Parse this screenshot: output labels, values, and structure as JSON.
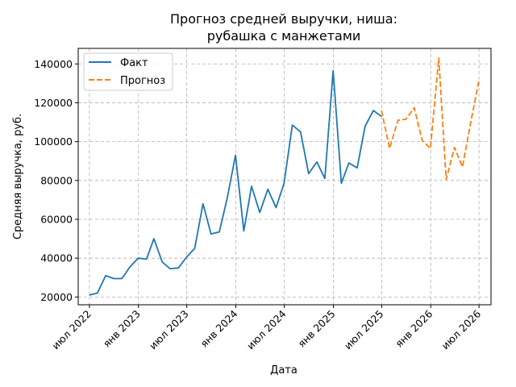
{
  "chart_data": {
    "type": "line",
    "title_line1": "Прогноз средней выручки, ниша:",
    "title_line2": "рубашка с манжетами",
    "xlabel": "Дата",
    "ylabel": "Средняя выручка, руб.",
    "ylim": [
      16000,
      148000
    ],
    "xlim": [
      "2022-05-20",
      "2026-08-15"
    ],
    "grid": true,
    "legend_position": "top-left",
    "y_ticks": [
      20000,
      40000,
      60000,
      80000,
      100000,
      120000,
      140000
    ],
    "y_tick_labels": [
      "20000",
      "40000",
      "60000",
      "80000",
      "100000",
      "120000",
      "140000"
    ],
    "x_ticks": [
      {
        "date": "2022-07-01",
        "label": "июл 2022"
      },
      {
        "date": "2023-01-01",
        "label": "янв 2023"
      },
      {
        "date": "2023-07-01",
        "label": "июл 2023"
      },
      {
        "date": "2024-01-01",
        "label": "янв 2024"
      },
      {
        "date": "2024-07-01",
        "label": "июл 2024"
      },
      {
        "date": "2025-01-01",
        "label": "янв 2025"
      },
      {
        "date": "2025-07-01",
        "label": "июл 2025"
      },
      {
        "date": "2026-01-01",
        "label": "янв 2026"
      },
      {
        "date": "2026-07-01",
        "label": "июл 2026"
      }
    ],
    "series": [
      {
        "name": "Факт",
        "color": "#1f77b4",
        "style": "solid",
        "x": [
          "2022-06-30",
          "2022-07-31",
          "2022-08-31",
          "2022-09-30",
          "2022-10-31",
          "2022-11-30",
          "2022-12-31",
          "2023-01-31",
          "2023-02-28",
          "2023-03-31",
          "2023-04-30",
          "2023-05-31",
          "2023-06-30",
          "2023-07-31",
          "2023-08-31",
          "2023-09-30",
          "2023-10-31",
          "2023-11-30",
          "2023-12-31",
          "2024-01-31",
          "2024-02-29",
          "2024-03-31",
          "2024-04-30",
          "2024-05-31",
          "2024-06-30",
          "2024-07-31",
          "2024-08-31",
          "2024-09-30",
          "2024-10-31",
          "2024-11-30",
          "2024-12-31",
          "2025-01-31",
          "2025-02-28",
          "2025-03-31",
          "2025-04-30",
          "2025-05-31",
          "2025-06-30"
        ],
        "y": [
          21000,
          22000,
          31000,
          29500,
          29500,
          35500,
          40000,
          39500,
          50000,
          38000,
          34500,
          35000,
          40500,
          45000,
          68000,
          52500,
          53500,
          71000,
          93000,
          54000,
          77000,
          63500,
          75500,
          66000,
          78500,
          108500,
          105000,
          83500,
          89500,
          81000,
          136500,
          78500,
          89000,
          86500,
          108000,
          116000,
          113000
        ]
      },
      {
        "name": "Прогноз",
        "color": "#ff7f0e",
        "style": "dashed",
        "x": [
          "2025-06-30",
          "2025-07-31",
          "2025-08-31",
          "2025-09-30",
          "2025-10-31",
          "2025-11-30",
          "2025-12-31",
          "2026-01-31",
          "2026-02-28",
          "2026-03-31",
          "2026-04-30",
          "2026-05-31",
          "2026-06-30"
        ],
        "y": [
          116000,
          96500,
          111000,
          111500,
          117500,
          100500,
          96500,
          143000,
          80500,
          97000,
          87000,
          110000,
          131000
        ]
      }
    ]
  }
}
